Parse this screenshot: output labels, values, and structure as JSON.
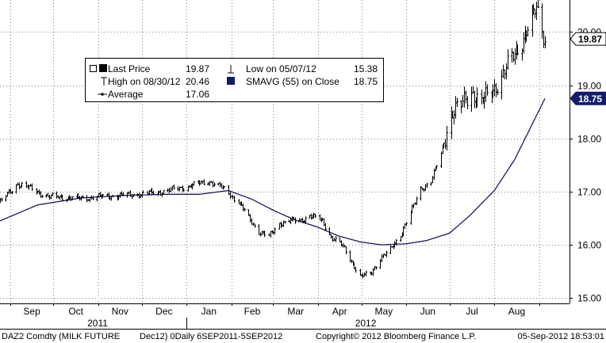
{
  "chart_data": {
    "type": "ohlc",
    "ylim": [
      14.9,
      20.6
    ],
    "yticks": [
      15.0,
      16.0,
      17.0,
      18.0,
      19.0,
      20.0
    ],
    "ytick_labels": [
      "15.00",
      "16.00",
      "17.00",
      "18.00",
      "19.00",
      "20.00"
    ],
    "grid": true,
    "month_labels": [
      "Sep",
      "Oct",
      "Nov",
      "Dec",
      "Jan",
      "Feb",
      "Mar",
      "Apr",
      "May",
      "Jun",
      "Jul",
      "Aug"
    ],
    "month_starts": [
      "2011-09-01",
      "2011-10-01",
      "2011-11-01",
      "2011-12-01",
      "2012-01-01",
      "2012-02-01",
      "2012-03-01",
      "2012-04-01",
      "2012-05-01",
      "2012-06-01",
      "2012-07-01",
      "2012-08-01",
      "2012-09-01"
    ],
    "year_labels": [
      {
        "label": "2011",
        "start": "2011-09-01",
        "end": "2011-12-31"
      },
      {
        "label": "2012",
        "start": "2012-01-01",
        "end": "2012-09-05"
      }
    ],
    "x_range": [
      "2011-08-25",
      "2012-09-22"
    ],
    "price_series": {
      "x": [
        "2011-08-25",
        "2011-09-06",
        "2011-09-16",
        "2011-09-27",
        "2011-10-07",
        "2011-10-17",
        "2011-10-31",
        "2011-11-14",
        "2011-11-28",
        "2011-12-15",
        "2012-01-03",
        "2012-01-16",
        "2012-01-27",
        "2012-02-06",
        "2012-02-13",
        "2012-02-20",
        "2012-02-27",
        "2012-03-05",
        "2012-03-12",
        "2012-03-19",
        "2012-03-26",
        "2012-04-04",
        "2012-04-10",
        "2012-04-17",
        "2012-04-24",
        "2012-04-30",
        "2012-05-07",
        "2012-05-14",
        "2012-05-21",
        "2012-05-28",
        "2012-06-04",
        "2012-06-11",
        "2012-06-18",
        "2012-06-25",
        "2012-07-02",
        "2012-07-09",
        "2012-07-16",
        "2012-07-23",
        "2012-07-30",
        "2012-08-06",
        "2012-08-13",
        "2012-08-20",
        "2012-08-27",
        "2012-08-30",
        "2012-09-05"
      ],
      "close": [
        16.8,
        17.15,
        17.05,
        16.9,
        16.9,
        16.87,
        16.9,
        16.92,
        16.95,
        17.0,
        17.1,
        17.2,
        17.05,
        16.8,
        16.5,
        16.25,
        16.15,
        16.4,
        16.45,
        16.45,
        16.55,
        16.45,
        16.15,
        16.0,
        15.7,
        15.4,
        15.45,
        15.75,
        15.9,
        16.2,
        16.6,
        17.05,
        17.2,
        17.7,
        18.5,
        18.6,
        18.9,
        18.65,
        18.9,
        19.15,
        19.5,
        19.85,
        20.2,
        20.46,
        19.87
      ]
    },
    "average_series": {
      "x": [
        "2011-08-25",
        "2011-09-20",
        "2011-10-20",
        "2011-11-20",
        "2011-12-20",
        "2012-01-10",
        "2012-01-30",
        "2012-02-15",
        "2012-03-01",
        "2012-03-15",
        "2012-04-01",
        "2012-04-15",
        "2012-05-01",
        "2012-05-15",
        "2012-06-01",
        "2012-06-15",
        "2012-07-01",
        "2012-07-15",
        "2012-08-01",
        "2012-08-15",
        "2012-09-05"
      ],
      "values": [
        16.45,
        16.75,
        16.88,
        16.93,
        16.95,
        16.95,
        17.02,
        16.86,
        16.65,
        16.48,
        16.33,
        16.17,
        16.05,
        16.0,
        16.02,
        16.08,
        16.22,
        16.55,
        17.02,
        17.6,
        18.75
      ]
    },
    "legend": {
      "rows": [
        [
          {
            "symbol": "box",
            "label": "Last Price",
            "value": "19.87"
          },
          {
            "symbol": "low-marker",
            "label": "Low on 05/07/12",
            "value": "15.38"
          }
        ],
        [
          {
            "symbol": "high-marker",
            "label": "High on 08/30/12",
            "value": "20.46"
          },
          {
            "symbol": "smavg-square",
            "label": "SMAVG (55) on Close",
            "value": "18.75"
          }
        ],
        [
          {
            "symbol": "avg-marker",
            "label": "Average",
            "value": "17.06"
          }
        ]
      ]
    },
    "tags": [
      {
        "label": "19.87",
        "value": 19.87,
        "style": "white"
      },
      {
        "label": "18.75",
        "value": 18.75,
        "style": "navy"
      }
    ],
    "colors": {
      "price": "#000000",
      "average": "#1a1a5e",
      "grid": "#808080",
      "navy": "#141b6b"
    }
  },
  "footer": {
    "ticker": "DAZ2 Comdty (MILK FUTURE",
    "contract": "Dec12) 0Daily 6SEP2011-5SEP2012",
    "copyright": "Copyright© 2012 Bloomberg Finance L.P.",
    "timestamp": "05-Sep-2012 18:53:01"
  }
}
